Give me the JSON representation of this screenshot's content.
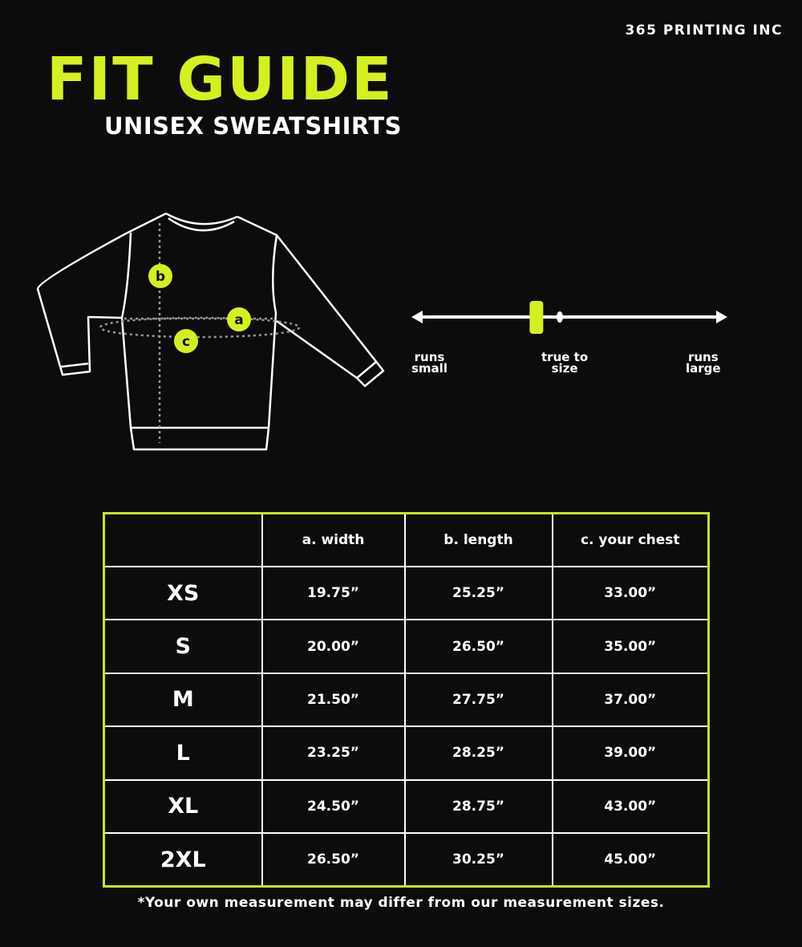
{
  "brand": "365 PRINTING INC",
  "title": "FIT GUIDE",
  "subtitle": "UNISEX SWEATSHIRTS",
  "diagram": {
    "markers": [
      "a",
      "b",
      "c"
    ]
  },
  "fit_scale": {
    "left_label_1": "runs",
    "left_label_2": "small",
    "center_label_1": "true to",
    "center_label_2": "size",
    "right_label_1": "runs",
    "right_label_2": "large",
    "position_fraction": 0.39
  },
  "table": {
    "headers": [
      "",
      "a. width",
      "b. length",
      "c. your chest"
    ],
    "rows": [
      [
        "XS",
        "19.75”",
        "25.25”",
        "33.00”"
      ],
      [
        "S",
        "20.00”",
        "26.50”",
        "35.00”"
      ],
      [
        "M",
        "21.50”",
        "27.75”",
        "37.00”"
      ],
      [
        "L",
        "23.25”",
        "28.25”",
        "39.00”"
      ],
      [
        "XL",
        "24.50”",
        "28.75”",
        "43.00”"
      ],
      [
        "2XL",
        "26.50”",
        "30.25”",
        "45.00”"
      ]
    ]
  },
  "note": "*Your own measurement may differ from our measurement sizes.",
  "colors": {
    "accent": "#d4f01e",
    "background": "#0c0c0c"
  }
}
